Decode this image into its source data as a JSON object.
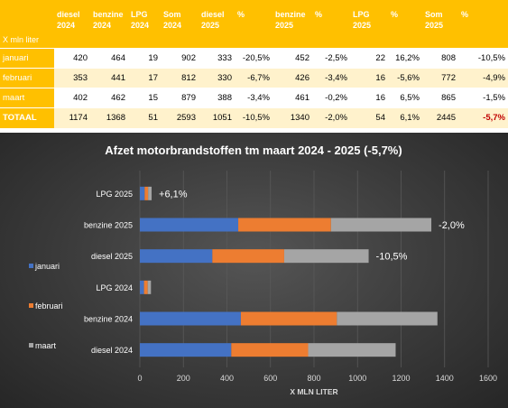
{
  "table": {
    "unit_label": "X mln liter",
    "headers": [
      [
        "diesel",
        "2024"
      ],
      [
        "benzine",
        "2024"
      ],
      [
        "LPG",
        "2024"
      ],
      [
        "Som",
        "2024"
      ],
      [
        "diesel",
        "2025"
      ],
      [
        "%",
        ""
      ],
      [
        "benzine",
        "2025"
      ],
      [
        "%",
        ""
      ],
      [
        "LPG",
        "2025"
      ],
      [
        "%",
        ""
      ],
      [
        "Som",
        "2025"
      ],
      [
        "%",
        ""
      ]
    ],
    "rows": [
      {
        "label": "januari",
        "cells": [
          "420",
          "464",
          "19",
          "902",
          "333",
          "-20,5%",
          "452",
          "-2,5%",
          "22",
          "16,2%",
          "808",
          "-10,5%"
        ]
      },
      {
        "label": "februari",
        "cells": [
          "353",
          "441",
          "17",
          "812",
          "330",
          "-6,7%",
          "426",
          "-3,4%",
          "16",
          "-5,6%",
          "772",
          "-4,9%"
        ]
      },
      {
        "label": "maart",
        "cells": [
          "402",
          "462",
          "15",
          "879",
          "388",
          "-3,4%",
          "461",
          "-0,2%",
          "16",
          "6,5%",
          "865",
          "-1,5%"
        ]
      },
      {
        "label": "TOTAAL",
        "cells": [
          "1174",
          "1368",
          "51",
          "2593",
          "1051",
          "-10,5%",
          "1340",
          "-2,0%",
          "54",
          "6,1%",
          "2445",
          "-5,7%"
        ]
      }
    ],
    "highlight_color": "#c00000",
    "header_color": "#ffc000",
    "band_color": "#fff2cc"
  },
  "chart_data": {
    "type": "bar",
    "orientation": "horizontal",
    "stacked": true,
    "title": "Afzet motorbrandstoffen tm maart 2024 - 2025 (-5,7%)",
    "xlabel": "X MLN LITER",
    "ylabel": "",
    "xlim": [
      0,
      1600
    ],
    "x_ticks": [
      0,
      200,
      400,
      600,
      800,
      1000,
      1200,
      1400,
      1600
    ],
    "categories": [
      "diesel 2024",
      "benzine 2024",
      "LPG 2024",
      "diesel 2025",
      "benzine 2025",
      "LPG 2025"
    ],
    "series": [
      {
        "name": "januari",
        "color": "#4472c4",
        "values": [
          420,
          464,
          19,
          333,
          452,
          22
        ]
      },
      {
        "name": "februari",
        "color": "#ed7d31",
        "values": [
          353,
          441,
          17,
          330,
          426,
          16
        ]
      },
      {
        "name": "maart",
        "color": "#a5a5a5",
        "values": [
          402,
          462,
          15,
          388,
          461,
          16
        ]
      }
    ],
    "bar_labels": [
      "",
      "",
      "",
      "-10,5%",
      "-2,0%",
      "+6,1%"
    ],
    "legend_position": "left",
    "grid": true,
    "background": "#3a3a3a"
  }
}
